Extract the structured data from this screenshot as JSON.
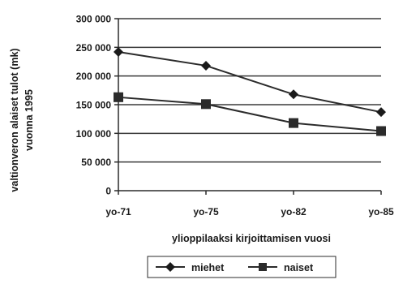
{
  "chart_data": {
    "type": "line",
    "categories": [
      "yo-71",
      "yo-75",
      "yo-82",
      "yo-85"
    ],
    "series": [
      {
        "name": "miehet",
        "marker": "diamond",
        "values": [
          242000,
          218000,
          168000,
          137000
        ]
      },
      {
        "name": "naiset",
        "marker": "square",
        "values": [
          163000,
          151000,
          118000,
          104000
        ]
      }
    ],
    "ylim": [
      0,
      300000
    ],
    "yticks": [
      0,
      50000,
      100000,
      150000,
      200000,
      250000,
      300000
    ],
    "ytick_labels": [
      "0",
      "50 000",
      "100 000",
      "150 000",
      "200 000",
      "250 000",
      "300 000"
    ],
    "xlabel": "ylioppilaaksi kirjoittamisen vuosi",
    "ylabel": "valtionveron alaiset tulot (mk)",
    "ylabel2": "vuonna 1995",
    "grid": "horizontal",
    "legend_position": "bottom",
    "colors": {
      "lines": "#2b2b2b",
      "grid": "#3a3a3a",
      "text": "#1a1a1a"
    }
  }
}
